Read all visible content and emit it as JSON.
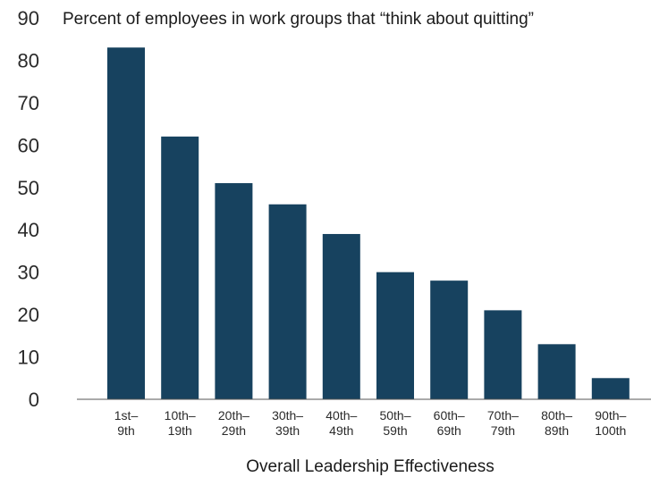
{
  "chart_data": {
    "type": "bar",
    "title": "Percent of employees in work groups that “think about quitting”",
    "xlabel": "Overall Leadership Effectiveness",
    "ylabel": "",
    "ylim": [
      0,
      90
    ],
    "yticks": [
      0,
      10,
      20,
      30,
      40,
      50,
      60,
      70,
      80,
      90
    ],
    "grid": false,
    "legend": "none",
    "bar_color": "#17425f",
    "axis_color": "#555555",
    "categories": [
      [
        "1st–",
        "9th"
      ],
      [
        "10th–",
        "19th"
      ],
      [
        "20th–",
        "29th"
      ],
      [
        "30th–",
        "39th"
      ],
      [
        "40th–",
        "49th"
      ],
      [
        "50th–",
        "59th"
      ],
      [
        "60th–",
        "69th"
      ],
      [
        "70th–",
        "79th"
      ],
      [
        "80th–",
        "89th"
      ],
      [
        "90th–",
        "100th"
      ]
    ],
    "values": [
      83,
      62,
      51,
      46,
      39,
      30,
      28,
      21,
      13,
      5
    ]
  }
}
